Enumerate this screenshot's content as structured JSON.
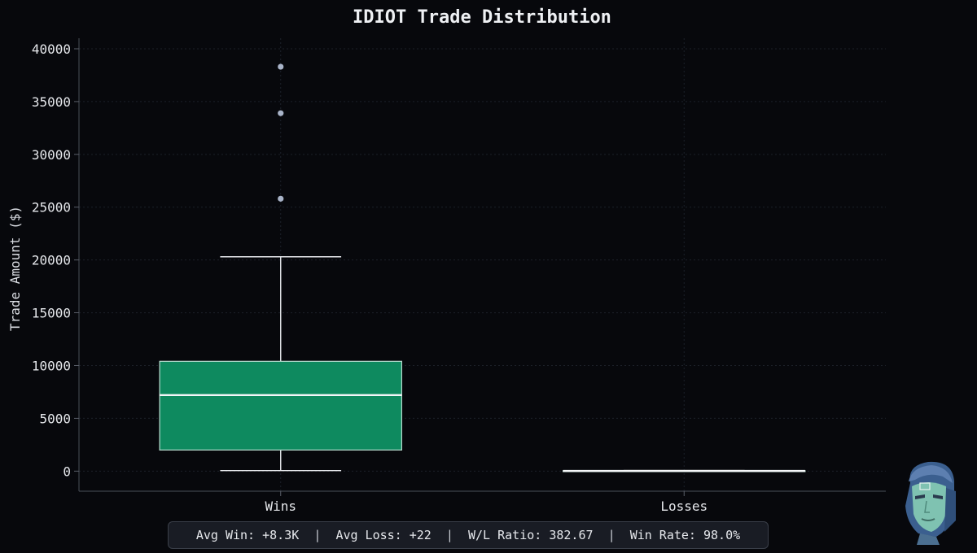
{
  "chart_data": {
    "type": "box",
    "title": "IDIOT Trade Distribution",
    "xlabel": "",
    "ylabel": "Trade Amount ($)",
    "ylim": [
      -1900,
      41000
    ],
    "yticks": [
      0,
      5000,
      10000,
      15000,
      20000,
      25000,
      30000,
      35000,
      40000
    ],
    "ytick_labels": [
      "0",
      "5000",
      "10000",
      "15000",
      "20000",
      "25000",
      "30000",
      "35000",
      "40000"
    ],
    "grid": true,
    "categories": [
      "Wins",
      "Losses"
    ],
    "boxes": [
      {
        "name": "Wins",
        "whisker_low": 50,
        "q1": 2000,
        "median": 7200,
        "q3": 10400,
        "whisker_high": 20300,
        "outliers": [
          25800,
          33900,
          38300
        ],
        "color": "#0e8a5f"
      },
      {
        "name": "Losses",
        "whisker_low": 0,
        "q1": 10,
        "median": 20,
        "q3": 35,
        "whisker_high": 60,
        "outliers": [],
        "color": "#c0392b"
      }
    ]
  },
  "stats": {
    "avg_win": "Avg Win: +8.3K",
    "avg_loss": "Avg Loss: +22",
    "wl_ratio": "W/L Ratio: 382.67",
    "win_rate": "Win Rate: 98.0%",
    "separator": "|"
  },
  "colors": {
    "background": "#07080c",
    "wins_box": "#0e8a5f",
    "outlier": "#a9b4c9",
    "whisker": "#e8eaee"
  },
  "icons": {
    "avatar": "robot-face-avatar"
  }
}
